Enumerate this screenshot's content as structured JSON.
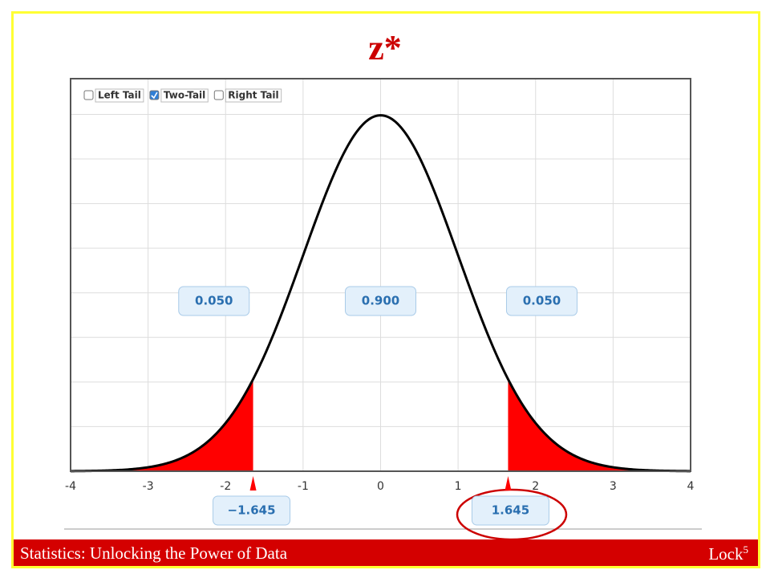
{
  "slide": {
    "footer_left": "Statistics: Unlocking the Power of Data",
    "footer_right": "Lock",
    "footer_sup": "5"
  },
  "chart_data": {
    "type": "normal",
    "title": "z*",
    "options": [
      {
        "label": "Left Tail",
        "checked": false
      },
      {
        "label": "Two-Tail",
        "checked": true
      },
      {
        "label": "Right Tail",
        "checked": false
      }
    ],
    "xlim": [
      -4,
      4
    ],
    "xticks": [
      -4,
      -3,
      -2,
      -1,
      0,
      1,
      2,
      3,
      4
    ],
    "ylim": [
      0,
      0.44
    ],
    "yticks": [
      0,
      0.05,
      0.1,
      0.15,
      0.2,
      0.25,
      0.3,
      0.35,
      0.4
    ],
    "grid": true,
    "tail_color": "#ff0000",
    "curve_color": "#000000",
    "areas": {
      "values": [
        0.05,
        0.9,
        0.05
      ],
      "value_labels": [
        "0.050",
        "0.900",
        "0.050"
      ]
    },
    "cutoffs": {
      "values": [
        -1.645,
        1.645
      ],
      "value_labels": [
        "−1.645",
        "1.645"
      ]
    }
  }
}
